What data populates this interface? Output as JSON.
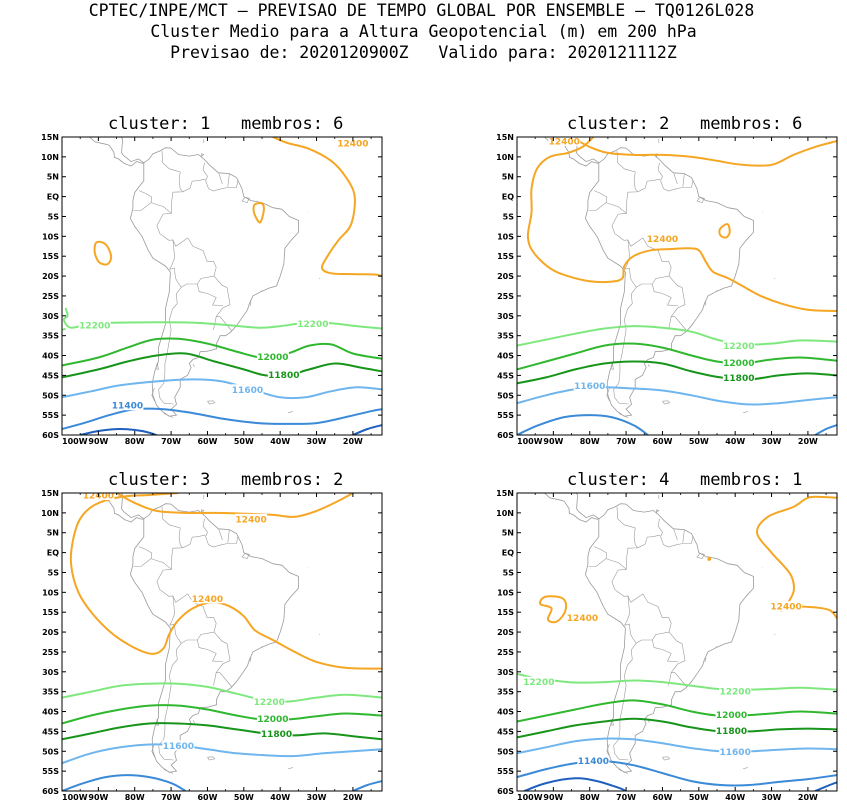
{
  "header": {
    "line1": "CPTEC/INPE/MCT – PREVISAO DE TEMPO GLOBAL POR ENSEMBLE – TQ0126L028",
    "line2": "Cluster Medio para a Altura Geopotencial (m) em 200 hPa",
    "line3": "Previsao de: 2020120900Z   Valido para: 2020121112Z"
  },
  "axes": {
    "lat_ticks": [
      "15N",
      "10N",
      "5N",
      "EQ",
      "5S",
      "10S",
      "15S",
      "20S",
      "25S",
      "30S",
      "35S",
      "40S",
      "45S",
      "50S",
      "55S",
      "60S"
    ],
    "lon_ticks": [
      "100W",
      "90W",
      "80W",
      "70W",
      "60W",
      "50W",
      "40W",
      "30W",
      "20W"
    ]
  },
  "colors": {
    "c12400": "#f5a623",
    "c12200": "#7ee87e",
    "c12000": "#2fb82f",
    "c11800": "#17941a",
    "c11600": "#6fb5ee",
    "c11400": "#3a8ad8",
    "c11200": "#1f5fbf",
    "coast": "#9a9a9a"
  },
  "panels": [
    {
      "title": "cluster: 1   membros: 6",
      "labels": [
        {
          "text": "12400",
          "color": "c12400"
        },
        {
          "text": "12200",
          "color": "c12200"
        },
        {
          "text": "12200",
          "color": "c12200"
        },
        {
          "text": "12000",
          "color": "c12000"
        },
        {
          "text": "11800",
          "color": "c11800"
        },
        {
          "text": "11600",
          "color": "c11600"
        },
        {
          "text": "11400",
          "color": "c11400"
        }
      ]
    },
    {
      "title": "cluster: 2   membros: 6",
      "labels": [
        {
          "text": "12400",
          "color": "c12400"
        },
        {
          "text": "12400",
          "color": "c12400"
        },
        {
          "text": "12200",
          "color": "c12200"
        },
        {
          "text": "12000",
          "color": "c12000"
        },
        {
          "text": "11800",
          "color": "c11800"
        },
        {
          "text": "11600",
          "color": "c11600"
        }
      ]
    },
    {
      "title": "cluster: 3   membros: 2",
      "labels": [
        {
          "text": "12400",
          "color": "c12400"
        },
        {
          "text": "12400",
          "color": "c12400"
        },
        {
          "text": "12400",
          "color": "c12400"
        },
        {
          "text": "12200",
          "color": "c12200"
        },
        {
          "text": "12000",
          "color": "c12000"
        },
        {
          "text": "11800",
          "color": "c11800"
        },
        {
          "text": "11600",
          "color": "c11600"
        }
      ]
    },
    {
      "title": "cluster: 4   membros: 1",
      "labels": [
        {
          "text": "12400",
          "color": "c12400"
        },
        {
          "text": "12400",
          "color": "c12400"
        },
        {
          "text": "12200",
          "color": "c12200"
        },
        {
          "text": "12200",
          "color": "c12200"
        },
        {
          "text": "12000",
          "color": "c12000"
        },
        {
          "text": "11800",
          "color": "c11800"
        },
        {
          "text": "11600",
          "color": "c11600"
        },
        {
          "text": "11400",
          "color": "c11400"
        }
      ]
    }
  ]
}
